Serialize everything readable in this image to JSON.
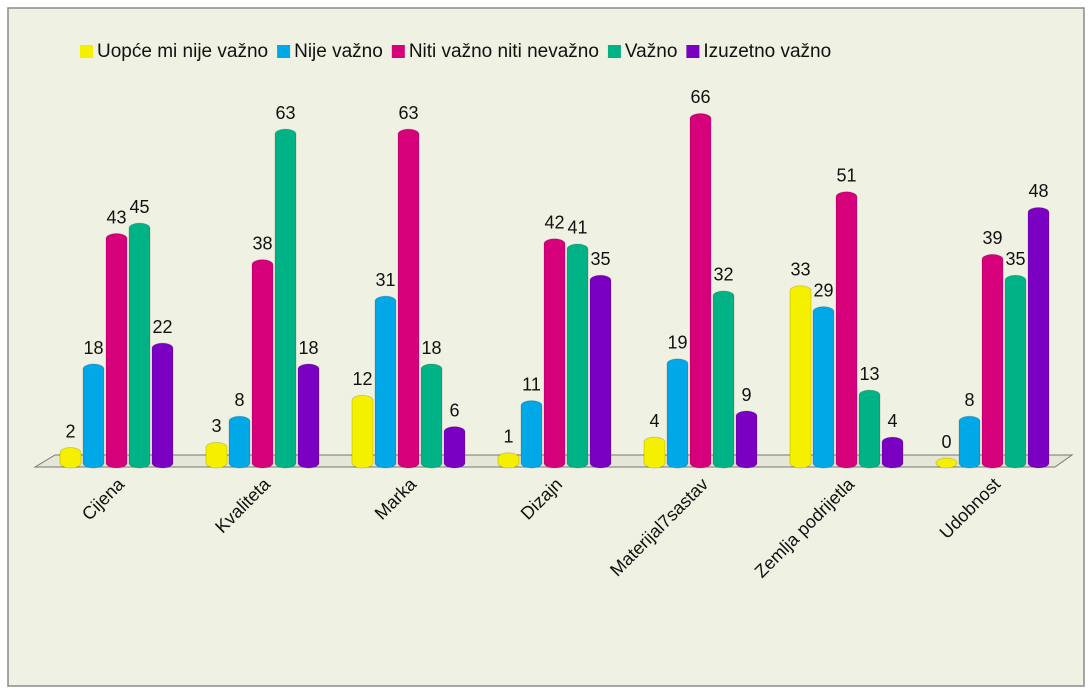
{
  "chart_data": {
    "type": "bar",
    "categories": [
      "Cijena",
      "Kvaliteta",
      "Marka",
      "Dizajn",
      "Materijal7sastav",
      "Zemlja podrijetla",
      "Udobnost"
    ],
    "series": [
      {
        "name": "Uopće mi nije važno",
        "color": "#f5f000",
        "values": [
          2,
          3,
          12,
          1,
          4,
          33,
          0
        ]
      },
      {
        "name": "Nije važno",
        "color": "#00a8e8",
        "values": [
          18,
          8,
          31,
          11,
          19,
          29,
          8
        ]
      },
      {
        "name": "Niti važno niti nevažno",
        "color": "#d6007a",
        "values": [
          43,
          38,
          63,
          42,
          66,
          51,
          39
        ]
      },
      {
        "name": "Važno",
        "color": "#00b386",
        "values": [
          45,
          63,
          18,
          41,
          32,
          13,
          35
        ]
      },
      {
        "name": "Izuzetno važno",
        "color": "#7a00c2",
        "values": [
          22,
          18,
          6,
          35,
          9,
          4,
          48
        ]
      }
    ],
    "legend": "top"
  }
}
